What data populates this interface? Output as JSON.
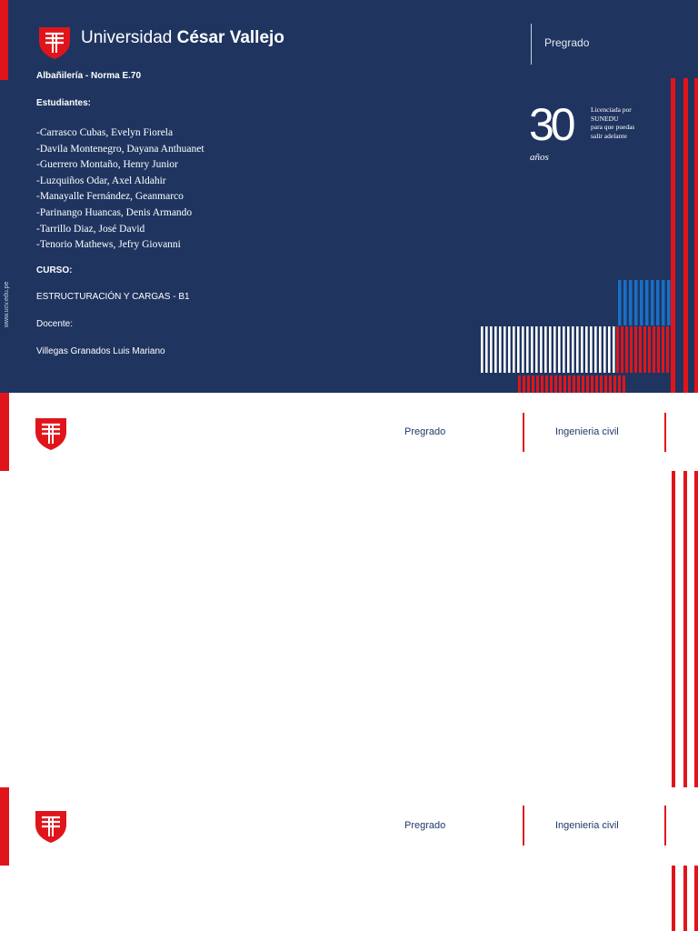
{
  "slide1": {
    "university_name_regular": "Universidad ",
    "university_name_bold": "César Vallejo",
    "nav_label": "Pregrado",
    "website": "www.ucv.edu.pe",
    "topic": "Albañilería - Norma E.70",
    "students_heading": "Estudiantes:",
    "students": [
      "-Carrasco Cubas, Evelyn Fiorela",
      "-Davila Montenegro, Dayana Anthuanet",
      "-Guerrero Montaño, Henry Junior",
      "-Luzquiños Odar, Axel Aldahir",
      "-Manayalle Fernández, Geanmarco",
      "-Parinango Huancas, Denis Armando",
      "-Tarrillo Diaz, José David",
      "-Tenorio Mathews, Jefry Giovanni"
    ],
    "course_heading": "CURSO:",
    "course_name": "ESTRUCTURACIÓN Y CARGAS - B1",
    "teacher_heading": "Docente:",
    "teacher_name": "Villegas Granados Luis Mariano",
    "anniversary_number": "30",
    "anniversary_word": "años",
    "license_lines": [
      "Licenciada por",
      "SUNEDU",
      "para que puedas",
      "salir adelante"
    ]
  },
  "slide2": {
    "nav_label": "Pregrado",
    "program": "Ingenieria civil"
  },
  "slide3": {
    "nav_label": "Pregrado",
    "program": "Ingenieria civil"
  },
  "colors": {
    "navy": "#1f3560",
    "red": "#e0151b",
    "blue": "#1a6fc4",
    "white": "#ffffff"
  }
}
